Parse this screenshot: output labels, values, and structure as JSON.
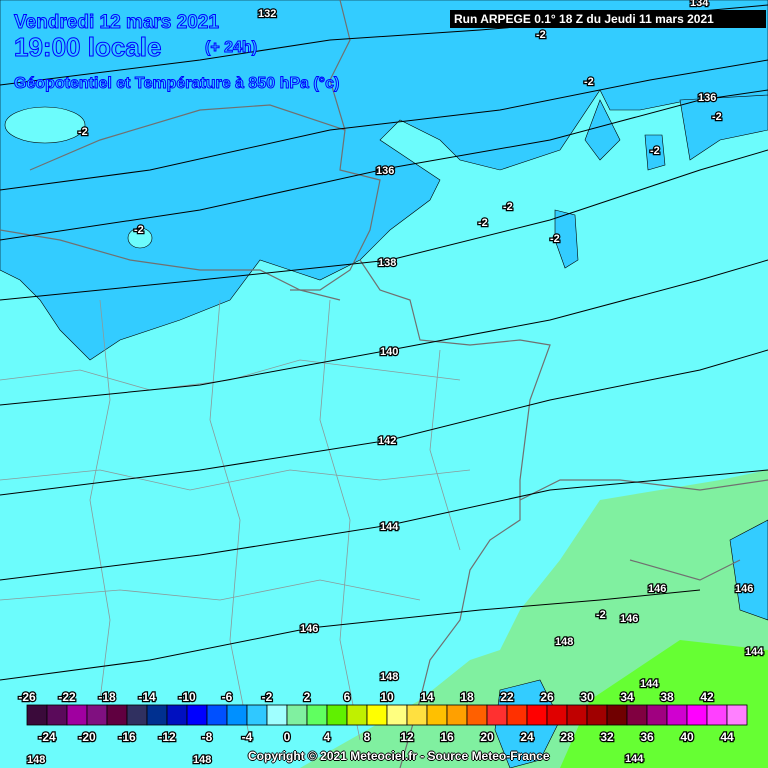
{
  "header": {
    "date": "Vendredi 12 mars 2021",
    "time": "19:00 locale",
    "lead": "(+ 24h)",
    "subtitle": "Géopotentiel et Température à 850 hPa (°c)",
    "run": "Run ARPEGE 0.1° 18 Z du Jeudi 11 mars 2021"
  },
  "copyright": "Copyright © 2021 Meteociel.fr - Source Meteo-France",
  "colors": {
    "cold_region": "#33ccff",
    "main_region": "#6cfcfc",
    "warm_region": "#80f0a0",
    "warmer_region": "#66ff33",
    "contour": "#000000",
    "border": "#707070"
  },
  "contours": [
    {
      "label": "132"
    },
    {
      "label": "134"
    },
    {
      "label": "136"
    },
    {
      "label": "138"
    },
    {
      "label": "140"
    },
    {
      "label": "142"
    },
    {
      "label": "144"
    },
    {
      "label": "146"
    },
    {
      "label": "148"
    }
  ],
  "temperature_labels": [
    "-2",
    "-2",
    "-2",
    "-2",
    "-2",
    "-2",
    "-2",
    "-2",
    "-2",
    "-2"
  ],
  "colorbar": {
    "top_labels": [
      "-26",
      "-22",
      "-18",
      "-14",
      "-10",
      "-6",
      "-2",
      "2",
      "6",
      "10",
      "14",
      "18",
      "22",
      "26",
      "30",
      "34",
      "38",
      "42"
    ],
    "bottom_labels": [
      "-24",
      "-20",
      "-16",
      "-12",
      "-8",
      "-4",
      "0",
      "4",
      "8",
      "12",
      "16",
      "20",
      "24",
      "28",
      "32",
      "36",
      "40",
      "44"
    ],
    "colors": [
      "#3a0a3a",
      "#5a0a5a",
      "#a000a0",
      "#801080",
      "#600040",
      "#303060",
      "#003090",
      "#0010c0",
      "#0000ff",
      "#0050ff",
      "#0090ff",
      "#30c8ff",
      "#a0ffff",
      "#80f0a0",
      "#60ff60",
      "#60f000",
      "#c0f000",
      "#ffff00",
      "#ffff80",
      "#ffe040",
      "#ffc000",
      "#ffa000",
      "#ff6000",
      "#ff3030",
      "#ff3000",
      "#ff0000",
      "#e00000",
      "#c00000",
      "#a00000",
      "#700000",
      "#800040",
      "#a00080",
      "#d000d0",
      "#ff00ff",
      "#ff40ff",
      "#ff80ff"
    ]
  }
}
